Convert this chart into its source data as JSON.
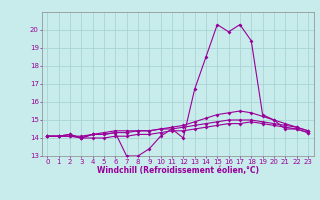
{
  "title": "",
  "xlabel": "Windchill (Refroidissement éolien,°C)",
  "background_color": "#c8ecec",
  "grid_color": "#aad4d4",
  "line_color": "#990099",
  "spine_color": "#888888",
  "x_values": [
    0,
    1,
    2,
    3,
    4,
    5,
    6,
    7,
    8,
    9,
    10,
    11,
    12,
    13,
    14,
    15,
    16,
    17,
    18,
    19,
    20,
    21,
    22,
    23
  ],
  "series1": [
    14.1,
    14.1,
    14.2,
    14.0,
    14.2,
    14.2,
    14.3,
    13.0,
    13.0,
    13.4,
    14.1,
    14.5,
    14.0,
    16.7,
    18.5,
    20.3,
    19.9,
    20.3,
    19.4,
    15.3,
    15.0,
    14.5,
    14.5,
    14.3
  ],
  "series2": [
    14.1,
    14.1,
    14.2,
    14.0,
    14.2,
    14.3,
    14.4,
    14.4,
    14.4,
    14.4,
    14.5,
    14.6,
    14.7,
    14.9,
    15.1,
    15.3,
    15.4,
    15.5,
    15.4,
    15.2,
    15.0,
    14.8,
    14.6,
    14.4
  ],
  "series3": [
    14.1,
    14.1,
    14.1,
    14.1,
    14.2,
    14.2,
    14.3,
    14.3,
    14.4,
    14.4,
    14.5,
    14.5,
    14.6,
    14.7,
    14.8,
    14.9,
    15.0,
    15.0,
    15.0,
    14.9,
    14.8,
    14.7,
    14.6,
    14.4
  ],
  "series4": [
    14.1,
    14.1,
    14.1,
    14.0,
    14.0,
    14.0,
    14.1,
    14.1,
    14.2,
    14.2,
    14.3,
    14.4,
    14.4,
    14.5,
    14.6,
    14.7,
    14.8,
    14.8,
    14.9,
    14.8,
    14.7,
    14.6,
    14.5,
    14.3
  ],
  "ylim": [
    13,
    21
  ],
  "xlim": [
    -0.5,
    23.5
  ],
  "yticks": [
    13,
    14,
    15,
    16,
    17,
    18,
    19,
    20
  ],
  "xticks": [
    0,
    1,
    2,
    3,
    4,
    5,
    6,
    7,
    8,
    9,
    10,
    11,
    12,
    13,
    14,
    15,
    16,
    17,
    18,
    19,
    20,
    21,
    22,
    23
  ],
  "tick_fontsize": 5.0,
  "xlabel_fontsize": 5.5,
  "linewidth": 0.8,
  "markersize": 2.0
}
